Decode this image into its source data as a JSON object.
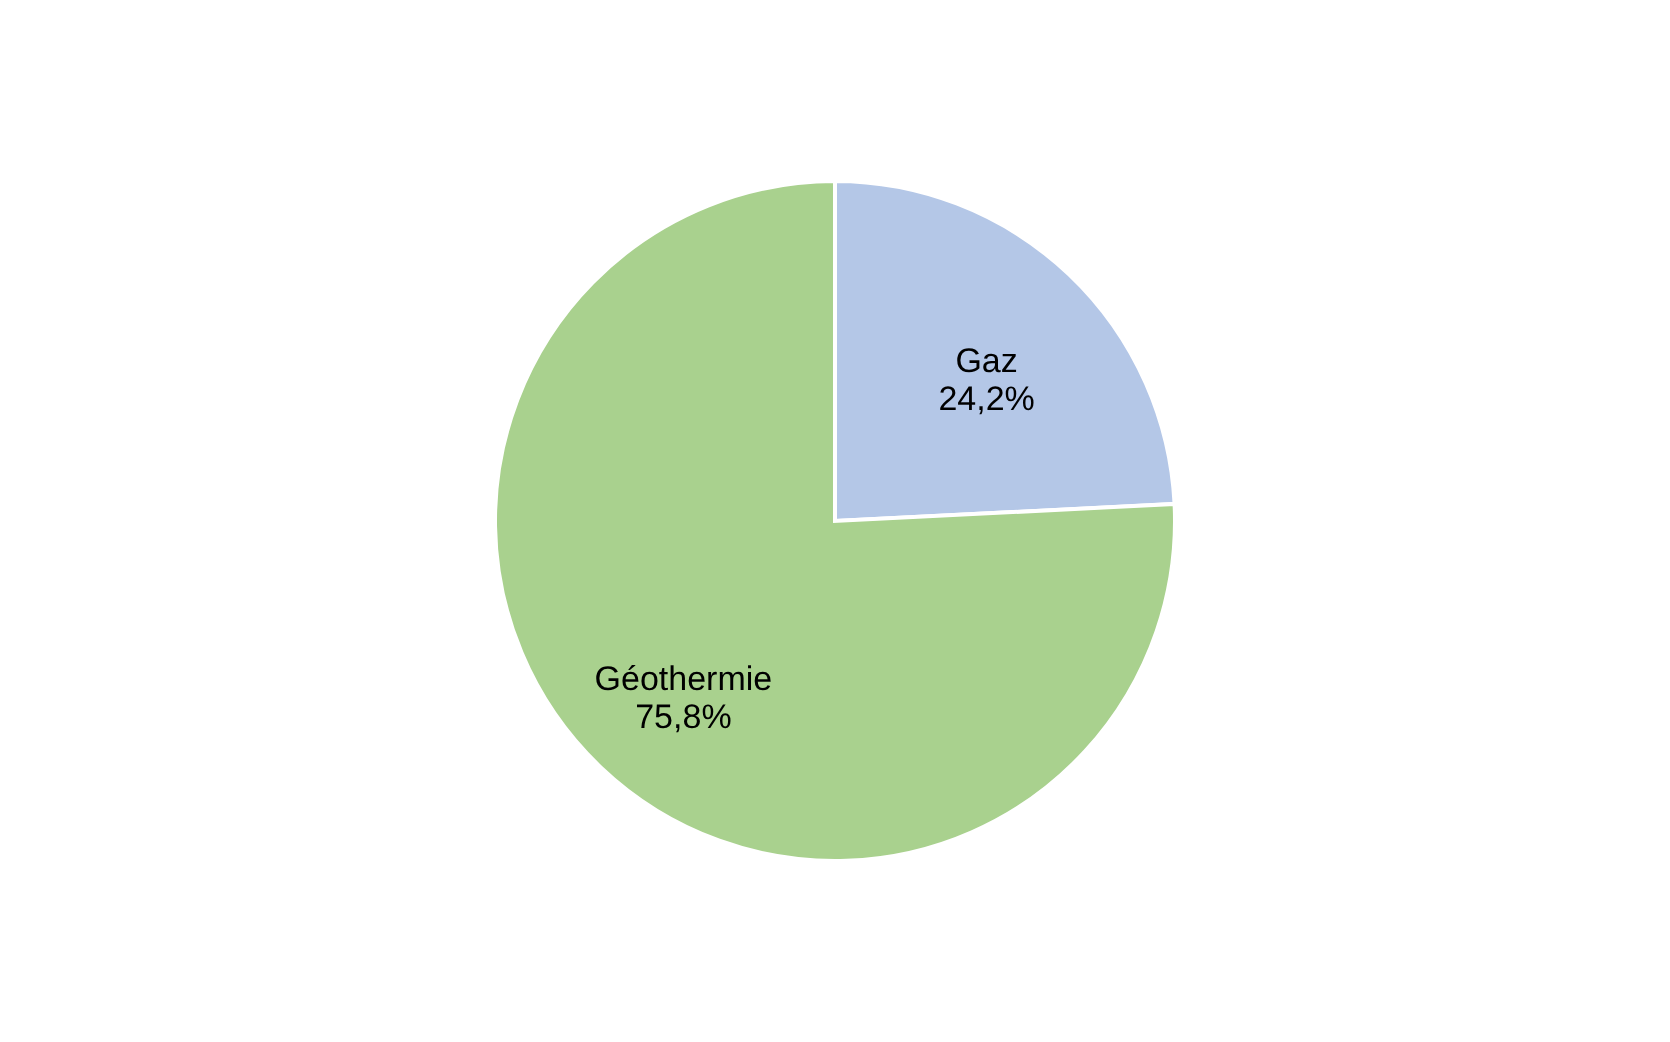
{
  "chart_data": {
    "type": "pie",
    "categories": [
      "Gaz",
      "Géothermie"
    ],
    "values": [
      24.2,
      75.8
    ],
    "colors": [
      "#b4c7e7",
      "#a9d18e"
    ],
    "value_labels": [
      "24,2%",
      "75,8%"
    ],
    "legend": false
  }
}
